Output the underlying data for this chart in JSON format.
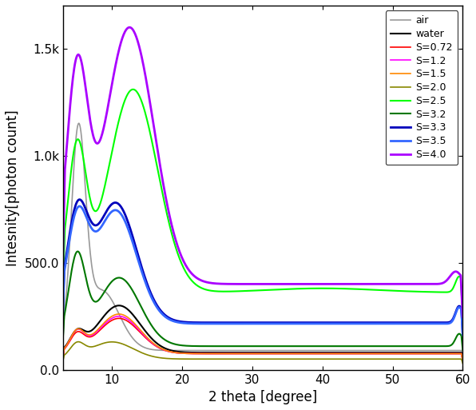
{
  "title": "",
  "xlabel": "2 theta [degree]",
  "ylabel": "Intesnity[photon count]",
  "xlim": [
    3,
    60
  ],
  "ylim": [
    0,
    1700
  ],
  "yticks": [
    0,
    500,
    1000,
    1500
  ],
  "ytick_labels": [
    "0.0",
    "500.0",
    "1.0k",
    "1.5k"
  ],
  "xticks": [
    10,
    20,
    30,
    40,
    50,
    60
  ],
  "series": [
    {
      "label": "air",
      "color": "#999999",
      "lw": 1.2
    },
    {
      "label": "water",
      "color": "#000000",
      "lw": 1.5
    },
    {
      "label": "S=0.72",
      "color": "#ff0000",
      "lw": 1.2
    },
    {
      "label": "S=1.2",
      "color": "#ff00ff",
      "lw": 1.2
    },
    {
      "label": "S=1.5",
      "color": "#ff8800",
      "lw": 1.2
    },
    {
      "label": "S=2.0",
      "color": "#888800",
      "lw": 1.2
    },
    {
      "label": "S=2.5",
      "color": "#00ff00",
      "lw": 1.5
    },
    {
      "label": "S=3.2",
      "color": "#007700",
      "lw": 1.5
    },
    {
      "label": "S=3.3",
      "color": "#0000bb",
      "lw": 2.0
    },
    {
      "label": "S=3.5",
      "color": "#3366ff",
      "lw": 2.0
    },
    {
      "label": "S=4.0",
      "color": "#aa00ff",
      "lw": 2.0
    }
  ],
  "background_color": "#ffffff"
}
